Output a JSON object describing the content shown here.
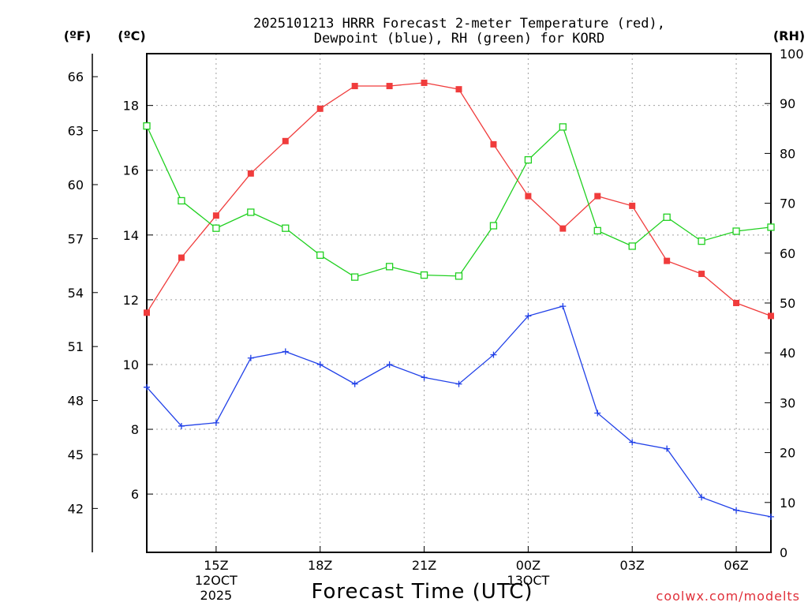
{
  "chart_data": {
    "type": "line",
    "title_line1": "2025101213 HRRR Forecast 2-meter Temperature (red),",
    "title_line2": "Dewpoint (blue), RH (green) for KORD",
    "xlabel": "Forecast Time (UTC)",
    "credit": "coolwx.com/modelts",
    "units": {
      "fahrenheit": "(ºF)",
      "celsius": "(ºC)",
      "rh": "(RH)"
    },
    "x_hours": [
      13,
      14,
      15,
      16,
      17,
      18,
      19,
      20,
      21,
      22,
      23,
      24,
      25,
      26,
      27,
      28,
      29,
      30,
      31
    ],
    "x_ticks": [
      {
        "hour": 15,
        "lines": [
          "15Z",
          "12OCT",
          "2025"
        ]
      },
      {
        "hour": 18,
        "lines": [
          "18Z"
        ]
      },
      {
        "hour": 21,
        "lines": [
          "21Z"
        ]
      },
      {
        "hour": 24,
        "lines": [
          "00Z",
          "13OCT"
        ]
      },
      {
        "hour": 27,
        "lines": [
          "03Z"
        ]
      },
      {
        "hour": 30,
        "lines": [
          "06Z"
        ]
      }
    ],
    "celsius_axis": {
      "min": 4.2,
      "max": 19.6,
      "ticks": [
        "6",
        "8",
        "10",
        "12",
        "14",
        "16",
        "18"
      ]
    },
    "fahrenheit_axis": {
      "ticks": [
        "42",
        "45",
        "48",
        "51",
        "54",
        "57",
        "60",
        "63",
        "66"
      ]
    },
    "rh_axis": {
      "min": 0,
      "max": 100,
      "ticks": [
        "0",
        "10",
        "20",
        "30",
        "40",
        "50",
        "60",
        "70",
        "80",
        "90",
        "100"
      ]
    },
    "series": [
      {
        "name": "Temperature",
        "axis": "celsius",
        "color": "#f03c3c",
        "marker": "filled-square",
        "values": [
          11.6,
          13.3,
          14.6,
          15.9,
          16.9,
          17.9,
          18.6,
          18.6,
          18.7,
          18.5,
          16.8,
          15.2,
          14.2,
          15.2,
          14.9,
          13.2,
          12.8,
          11.9,
          11.5
        ]
      },
      {
        "name": "Dewpoint",
        "axis": "celsius",
        "color": "#2040e8",
        "marker": "plus",
        "values": [
          9.3,
          8.1,
          8.2,
          10.2,
          10.4,
          10.0,
          9.4,
          10.0,
          9.6,
          9.4,
          10.3,
          11.5,
          11.8,
          8.5,
          7.6,
          7.4,
          5.9,
          5.5,
          5.3
        ]
      },
      {
        "name": "RH",
        "axis": "rh",
        "color": "#20d020",
        "marker": "open-square",
        "values": [
          85.5,
          70.5,
          65,
          68.2,
          65,
          59.6,
          55.2,
          57.3,
          55.6,
          55.4,
          65.5,
          78.7,
          85.3,
          64.5,
          61.4,
          67.2,
          62.4,
          64.4,
          65.2
        ]
      }
    ]
  }
}
